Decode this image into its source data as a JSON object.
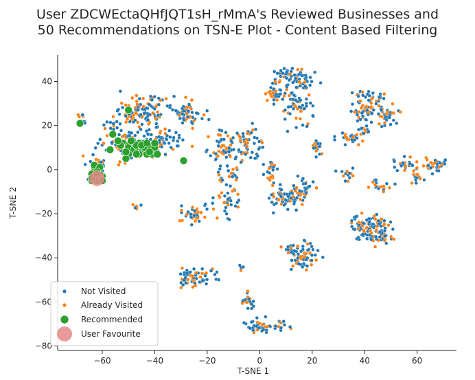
{
  "chart_data": {
    "type": "scatter",
    "title": "User ZDCWEctaQHfJQT1sH_rMmA's Reviewed Businesses and\n50 Recommendations on TSN-E Plot - Content Based Filtering",
    "xlabel": "T-SNE 1",
    "ylabel": "T-SNE 2",
    "xlim": [
      -77,
      75
    ],
    "ylim": [
      -82,
      52
    ],
    "xticks": [
      -60,
      -40,
      -20,
      0,
      20,
      40,
      60
    ],
    "yticks": [
      -80,
      -60,
      -40,
      -20,
      0,
      20,
      40
    ],
    "legend_position": "lower-left",
    "clusters": [
      {
        "cx": -45,
        "cy": 26,
        "sx": 7,
        "sy": 5,
        "n": 110
      },
      {
        "cx": -28,
        "cy": 26,
        "sx": 4,
        "sy": 4,
        "n": 60
      },
      {
        "cx": -52,
        "cy": 12,
        "sx": 6,
        "sy": 5,
        "n": 70
      },
      {
        "cx": -38,
        "cy": 12,
        "sx": 5,
        "sy": 5,
        "n": 60
      },
      {
        "cx": -63,
        "cy": 2,
        "sx": 3,
        "sy": 3,
        "n": 20
      },
      {
        "cx": -14,
        "cy": 10,
        "sx": 4,
        "sy": 5,
        "n": 50
      },
      {
        "cx": -5,
        "cy": 12,
        "sx": 5,
        "sy": 5,
        "n": 60
      },
      {
        "cx": 5,
        "cy": 35,
        "sx": 3,
        "sy": 4,
        "n": 40
      },
      {
        "cx": 11,
        "cy": 42,
        "sx": 4,
        "sy": 3,
        "n": 40
      },
      {
        "cx": 17,
        "cy": 40,
        "sx": 3,
        "sy": 3,
        "n": 30
      },
      {
        "cx": 14,
        "cy": 30,
        "sx": 4,
        "sy": 5,
        "n": 50
      },
      {
        "cx": 22,
        "cy": 10,
        "sx": 2,
        "sy": 2,
        "n": 20
      },
      {
        "cx": 34,
        "cy": 14,
        "sx": 4,
        "sy": 2,
        "n": 25
      },
      {
        "cx": 42,
        "cy": 33,
        "sx": 4,
        "sy": 2,
        "n": 30
      },
      {
        "cx": 40,
        "cy": 26,
        "sx": 4,
        "sy": 3,
        "n": 50
      },
      {
        "cx": 49,
        "cy": 25,
        "sx": 3,
        "sy": 3,
        "n": 40
      },
      {
        "cx": 39,
        "cy": 18,
        "sx": 2,
        "sy": 2,
        "n": 12
      },
      {
        "cx": 55,
        "cy": 2,
        "sx": 3,
        "sy": 2,
        "n": 25
      },
      {
        "cx": 67,
        "cy": 2,
        "sx": 3,
        "sy": 2,
        "n": 40
      },
      {
        "cx": 60,
        "cy": -4,
        "sx": 3,
        "sy": 2,
        "n": 15
      },
      {
        "cx": 46,
        "cy": -7,
        "sx": 3,
        "sy": 2,
        "n": 20
      },
      {
        "cx": 34,
        "cy": -2,
        "sx": 2,
        "sy": 2,
        "n": 15
      },
      {
        "cx": 10,
        "cy": -13,
        "sx": 5,
        "sy": 3,
        "n": 70
      },
      {
        "cx": 17,
        "cy": -8,
        "sx": 3,
        "sy": 3,
        "n": 25
      },
      {
        "cx": 5,
        "cy": -1,
        "sx": 2,
        "sy": 5,
        "n": 25
      },
      {
        "cx": -12,
        "cy": -13,
        "sx": 3,
        "sy": 5,
        "n": 35
      },
      {
        "cx": -25,
        "cy": -20,
        "sx": 3,
        "sy": 3,
        "n": 40
      },
      {
        "cx": -12,
        "cy": -2,
        "sx": 3,
        "sy": 3,
        "n": 20
      },
      {
        "cx": 42,
        "cy": -27,
        "sx": 5,
        "sy": 4,
        "n": 100
      },
      {
        "cx": 47,
        "cy": -30,
        "sx": 2,
        "sy": 2,
        "n": 20
      },
      {
        "cx": 17,
        "cy": -40,
        "sx": 3,
        "sy": 5,
        "n": 50
      },
      {
        "cx": 12,
        "cy": -36,
        "sx": 3,
        "sy": 3,
        "n": 20
      },
      {
        "cx": -24,
        "cy": -49,
        "sx": 5,
        "sy": 3,
        "n": 60
      },
      {
        "cx": -4,
        "cy": -60,
        "sx": 2,
        "sy": 3,
        "n": 20
      },
      {
        "cx": 0,
        "cy": -71,
        "sx": 3,
        "sy": 2,
        "n": 40
      },
      {
        "cx": 8,
        "cy": -71,
        "sx": 2,
        "sy": 2,
        "n": 15
      },
      {
        "cx": -6,
        "cy": -45,
        "sx": 1,
        "sy": 1,
        "n": 4
      },
      {
        "cx": -47,
        "cy": -17,
        "sx": 1,
        "sy": 1,
        "n": 5
      },
      {
        "cx": -67,
        "cy": 21,
        "sx": 1,
        "sy": 1,
        "n": 3
      },
      {
        "cx": -57,
        "cy": 20,
        "sx": 2,
        "sy": 2,
        "n": 10
      },
      {
        "cx": -68,
        "cy": 25,
        "sx": 1,
        "sy": 1,
        "n": 5
      }
    ],
    "visited_fraction": 0.35,
    "recommended": [
      [
        -68.5,
        21
      ],
      [
        -56,
        16
      ],
      [
        -50,
        27
      ],
      [
        -57,
        9
      ],
      [
        -52,
        12
      ],
      [
        -50,
        11
      ],
      [
        -48,
        12
      ],
      [
        -46,
        12
      ],
      [
        -44,
        12
      ],
      [
        -50,
        10
      ],
      [
        -48,
        9
      ],
      [
        -46,
        9
      ],
      [
        -42,
        11
      ],
      [
        -40,
        10
      ],
      [
        -50,
        7
      ],
      [
        -51,
        5
      ],
      [
        -45,
        8
      ],
      [
        -41,
        7
      ],
      [
        -43,
        7
      ],
      [
        -47,
        11
      ],
      [
        -29,
        4
      ],
      [
        -63,
        1
      ],
      [
        -62,
        0
      ],
      [
        -63,
        -1
      ],
      [
        -64,
        -2
      ],
      [
        -62,
        -3
      ],
      [
        -64,
        -5
      ],
      [
        -61,
        -4
      ],
      [
        -60,
        -3
      ],
      [
        -63,
        -3
      ],
      [
        -62,
        -5
      ],
      [
        -61,
        -2
      ],
      [
        -53,
        11
      ],
      [
        -44,
        10
      ],
      [
        -39,
        7
      ],
      [
        -46,
        7
      ],
      [
        -54,
        13
      ],
      [
        -49,
        13
      ],
      [
        -45,
        11
      ],
      [
        -42,
        8
      ],
      [
        -51,
        8
      ],
      [
        -47,
        7
      ],
      [
        -40,
        12
      ],
      [
        -43,
        12
      ],
      [
        -63,
        2
      ],
      [
        -61,
        1
      ],
      [
        -62,
        -1
      ],
      [
        -60,
        -5
      ],
      [
        -64,
        -4
      ],
      [
        -62,
        -2
      ]
    ],
    "user_favourite": [
      -62,
      -4
    ],
    "legend": [
      "Not Visited",
      "Already Visited",
      "Recommended",
      "User Favourite"
    ],
    "series_colors": [
      "#1f77b4",
      "#ff7f0e",
      "#2ca02c",
      "#e58a8a"
    ]
  }
}
